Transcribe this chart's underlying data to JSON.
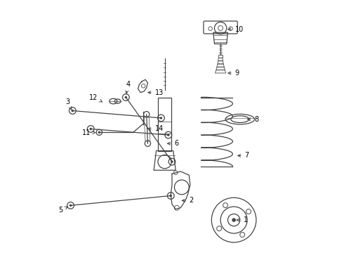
{
  "background_color": "#ffffff",
  "line_color": "#444444",
  "label_color": "#000000",
  "fig_width": 4.9,
  "fig_height": 3.6,
  "dpi": 100,
  "label_positions": {
    "1": [
      0.755,
      0.115,
      0.04,
      0.0
    ],
    "2": [
      0.53,
      0.195,
      0.04,
      0.0
    ],
    "3": [
      0.09,
      0.56,
      -0.01,
      0.04
    ],
    "4": [
      0.31,
      0.625,
      0.0,
      0.05
    ],
    "5": [
      0.08,
      0.175,
      -0.03,
      -0.02
    ],
    "6": [
      0.47,
      0.43,
      0.04,
      0.0
    ],
    "7": [
      0.76,
      0.38,
      0.04,
      0.0
    ],
    "8": [
      0.8,
      0.53,
      0.04,
      0.0
    ],
    "9": [
      0.72,
      0.72,
      0.04,
      0.0
    ],
    "10": [
      0.72,
      0.9,
      0.04,
      0.0
    ],
    "11": [
      0.195,
      0.475,
      -0.03,
      0.0
    ],
    "12": [
      0.215,
      0.6,
      -0.02,
      0.02
    ],
    "13": [
      0.39,
      0.64,
      0.04,
      0.0
    ],
    "14": [
      0.39,
      0.49,
      0.04,
      0.0
    ]
  }
}
